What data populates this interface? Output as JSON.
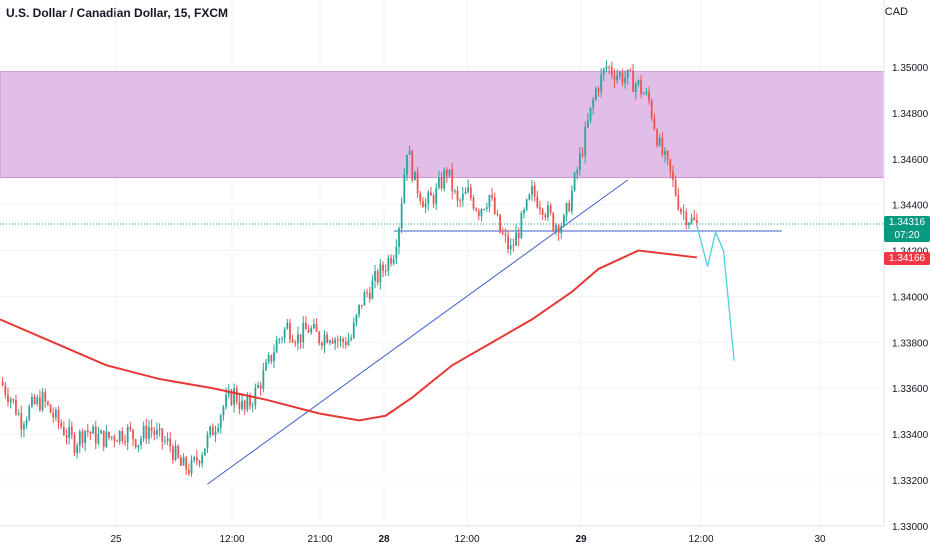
{
  "header": {
    "title": "U.S. Dollar / Canadian Dollar, 15, FXCM",
    "currency": "CAD"
  },
  "tags": {
    "price": "1.34316",
    "timer": "07:20",
    "ma": "1.34166"
  },
  "colors": {
    "up": "#26a69a",
    "down": "#ef5350",
    "ma": "#e53935",
    "zone": "#e1bee7",
    "price_tag": "#089981",
    "ma_tag": "#f23645",
    "trend": "#3f5fd1",
    "projection": "#4dd0e1"
  },
  "chart_data": {
    "type": "candlestick",
    "symbol": "USD/CAD",
    "timeframe": "15",
    "y_ticks": [
      "1.35000",
      "1.34800",
      "1.34600",
      "1.34400",
      "1.34200",
      "1.34000",
      "1.33800",
      "1.33600",
      "1.33400",
      "1.33200",
      "1.33000"
    ],
    "ylim": [
      1.3298,
      1.352
    ],
    "x_ticks": [
      "25",
      "12:00",
      "21:00",
      "28",
      "12:00",
      "29",
      "12:00",
      "30"
    ],
    "close_path": [
      [
        0,
        1.3363
      ],
      [
        4,
        1.3356
      ],
      [
        8,
        1.3346
      ],
      [
        12,
        1.3352
      ],
      [
        16,
        1.3355
      ],
      [
        20,
        1.3348
      ],
      [
        24,
        1.3342
      ],
      [
        28,
        1.3336
      ],
      [
        32,
        1.3342
      ],
      [
        36,
        1.3339
      ],
      [
        40,
        1.3338
      ],
      [
        44,
        1.334
      ],
      [
        48,
        1.3341
      ],
      [
        52,
        1.3337
      ],
      [
        56,
        1.3343
      ],
      [
        60,
        1.3338
      ],
      [
        64,
        1.3335
      ],
      [
        68,
        1.3326
      ],
      [
        72,
        1.3325
      ],
      [
        76,
        1.3333
      ],
      [
        80,
        1.3342
      ],
      [
        84,
        1.3352
      ],
      [
        88,
        1.3358
      ],
      [
        92,
        1.335
      ],
      [
        96,
        1.3358
      ],
      [
        100,
        1.3368
      ],
      [
        104,
        1.338
      ],
      [
        108,
        1.3387
      ],
      [
        112,
        1.3382
      ],
      [
        116,
        1.3386
      ],
      [
        120,
        1.3382
      ],
      [
        124,
        1.3384
      ],
      [
        128,
        1.338
      ],
      [
        132,
        1.3382
      ],
      [
        136,
        1.3398
      ],
      [
        140,
        1.3405
      ],
      [
        144,
        1.3412
      ],
      [
        148,
        1.342
      ],
      [
        150,
        1.3432
      ],
      [
        153,
        1.3465
      ],
      [
        156,
        1.345
      ],
      [
        160,
        1.344
      ],
      [
        164,
        1.3445
      ],
      [
        168,
        1.3455
      ],
      [
        172,
        1.344
      ],
      [
        176,
        1.3445
      ],
      [
        180,
        1.3438
      ],
      [
        184,
        1.3444
      ],
      [
        188,
        1.3428
      ],
      [
        192,
        1.342
      ],
      [
        196,
        1.3432
      ],
      [
        200,
        1.3445
      ],
      [
        204,
        1.344
      ],
      [
        208,
        1.3432
      ],
      [
        212,
        1.3432
      ],
      [
        216,
        1.345
      ],
      [
        220,
        1.347
      ],
      [
        224,
        1.349
      ],
      [
        228,
        1.35
      ],
      [
        232,
        1.3497
      ],
      [
        236,
        1.3495
      ],
      [
        240,
        1.3492
      ],
      [
        244,
        1.3485
      ],
      [
        248,
        1.3465
      ],
      [
        252,
        1.3453
      ],
      [
        256,
        1.3438
      ],
      [
        260,
        1.3433
      ],
      [
        262,
        1.3431
      ]
    ],
    "moving_average": [
      [
        0,
        1.339
      ],
      [
        20,
        1.338
      ],
      [
        40,
        1.337
      ],
      [
        60,
        1.3364
      ],
      [
        80,
        1.336
      ],
      [
        100,
        1.3355
      ],
      [
        120,
        1.3349
      ],
      [
        135,
        1.3346
      ],
      [
        145,
        1.3348
      ],
      [
        155,
        1.3356
      ],
      [
        170,
        1.337
      ],
      [
        185,
        1.338
      ],
      [
        200,
        1.339
      ],
      [
        215,
        1.3402
      ],
      [
        225,
        1.3412
      ],
      [
        240,
        1.342
      ],
      [
        262,
        1.3417
      ]
    ],
    "supply_zone": [
      1.34518,
      1.3498
    ],
    "horizontal_level": 1.34285,
    "trendline": [
      [
        78,
        1.33182
      ],
      [
        236,
        1.34508
      ]
    ],
    "projection": [
      [
        262,
        1.3431
      ],
      [
        266,
        1.3413
      ],
      [
        269,
        1.3428
      ],
      [
        272,
        1.342
      ],
      [
        276,
        1.3372
      ]
    ],
    "last_price": 1.34316,
    "ma_value": 1.34166
  }
}
